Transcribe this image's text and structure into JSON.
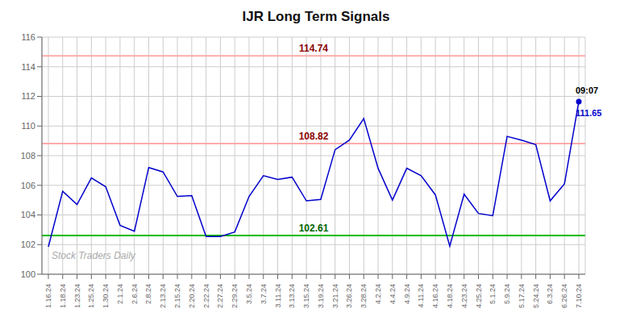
{
  "chart_data": {
    "type": "line",
    "title": "IJR Long Term Signals",
    "watermark": "Stock Traders Daily",
    "categories": [
      "1.16.24",
      "1.18.24",
      "1.23.24",
      "1.25.24",
      "1.30.24",
      "2.1.24",
      "2.6.24",
      "2.8.24",
      "2.13.24",
      "2.15.24",
      "2.20.24",
      "2.22.24",
      "2.27.24",
      "2.29.24",
      "3.5.24",
      "3.7.24",
      "3.11.24",
      "3.13.24",
      "3.15.24",
      "3.19.24",
      "3.21.24",
      "3.26.24",
      "3.28.24",
      "4.2.24",
      "4.4.24",
      "4.9.24",
      "4.11.24",
      "4.16.24",
      "4.18.24",
      "4.23.24",
      "4.25.24",
      "5.1.24",
      "5.9.24",
      "5.17.24",
      "5.24.24",
      "6.3.24",
      "6.26.24",
      "7.10.24"
    ],
    "values": [
      101.85,
      105.6,
      104.7,
      106.5,
      105.9,
      103.3,
      102.9,
      107.2,
      106.9,
      105.25,
      105.3,
      102.55,
      102.55,
      102.85,
      105.25,
      106.65,
      106.4,
      106.55,
      104.95,
      105.05,
      108.4,
      109.05,
      110.5,
      107.15,
      105.0,
      107.15,
      106.65,
      105.35,
      101.9,
      105.4,
      104.1,
      103.95,
      109.3,
      109.05,
      108.75,
      104.95,
      106.1,
      111.65
    ],
    "color": "#0000cc",
    "ylim": [
      100,
      116
    ],
    "yticks": [
      100,
      102,
      104,
      106,
      108,
      110,
      112,
      114,
      116
    ],
    "grid": true,
    "reference_lines": [
      {
        "value": 114.74,
        "label": "114.74",
        "color": "#ffaaaa",
        "label_color": "#8b0000"
      },
      {
        "value": 108.82,
        "label": "108.82",
        "color": "#ffaaaa",
        "label_color": "#8b0000"
      },
      {
        "value": 102.61,
        "label": "102.61",
        "color": "#00bb00",
        "label_color": "#006600"
      }
    ],
    "last_point_labels": [
      {
        "label": "09:07",
        "color": "#000000"
      },
      {
        "value": 111.65,
        "label": "111.65",
        "color": "#0000cc"
      }
    ]
  }
}
